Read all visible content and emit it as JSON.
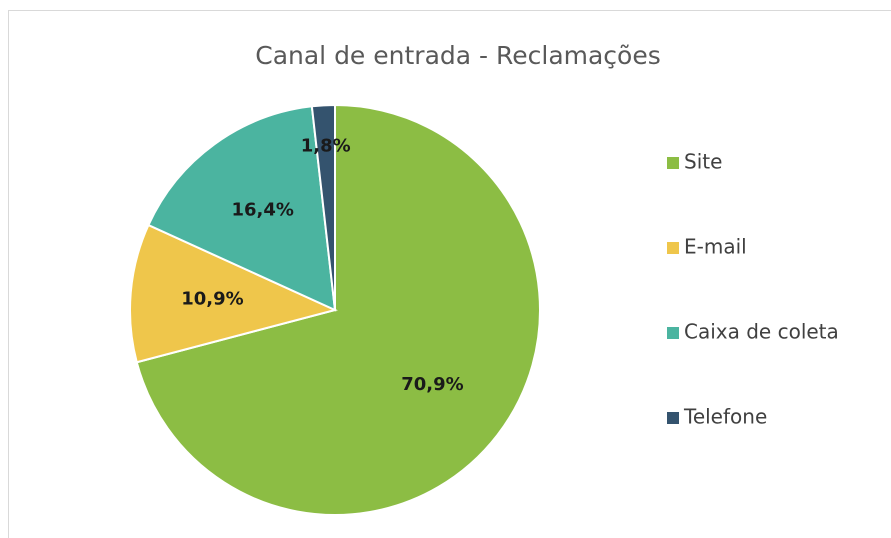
{
  "chart_data": {
    "type": "pie",
    "title": "Canal de entrada - Reclamações",
    "categories": [
      "Site",
      "E-mail",
      "Caixa de coleta",
      "Telefone"
    ],
    "values": [
      70.9,
      10.9,
      16.4,
      1.8
    ],
    "value_labels": [
      "70,9%",
      "10,9%",
      "16,4%",
      "1,8%"
    ],
    "colors": [
      "#8cbd44",
      "#efc64b",
      "#4bb4a0",
      "#34536e"
    ],
    "legend": "right"
  }
}
